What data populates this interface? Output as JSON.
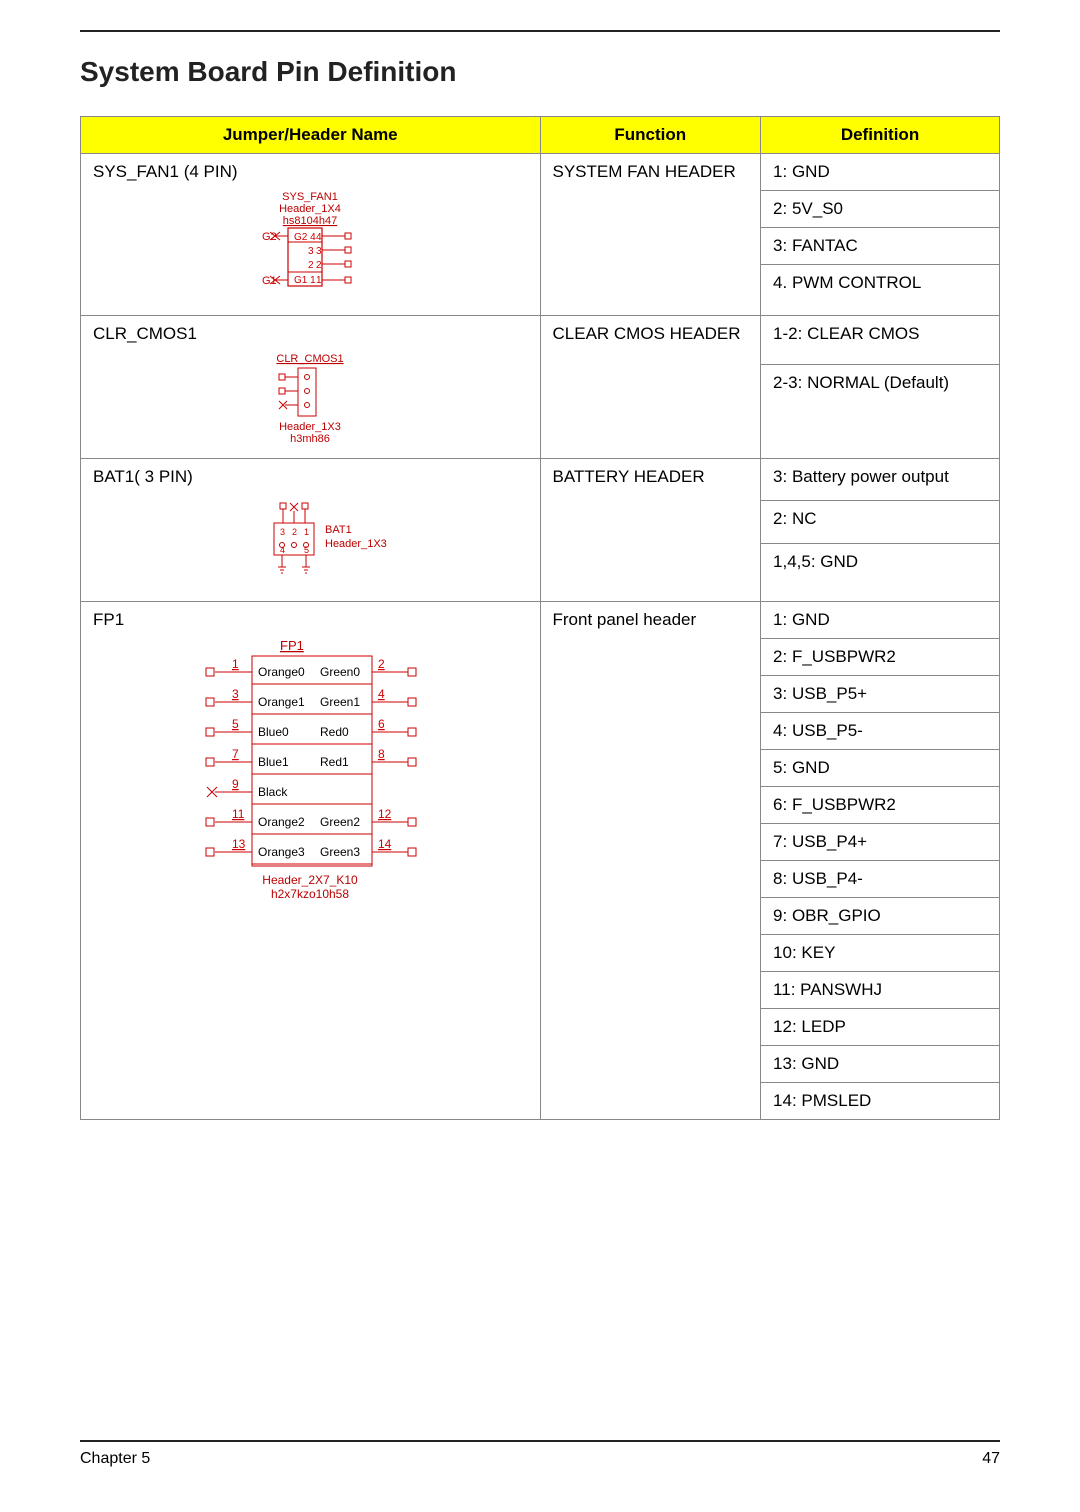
{
  "page": {
    "title": "System Board Pin Definition",
    "chapter_label": "Chapter 5",
    "page_number": "47"
  },
  "columns": {
    "c1": "Jumper/Header Name",
    "c2": "Function",
    "c3": "Definition"
  },
  "rows": {
    "sys_fan": {
      "name": "SYS_FAN1 (4 PIN)",
      "func": "SYSTEM FAN HEADER",
      "defs": [
        "1: GND",
        "2: 5V_S0",
        "3: FANTAC",
        "4. PWM CONTROL"
      ],
      "diag": {
        "title1": "SYS_FAN1",
        "title2": "Header_1X4",
        "title3": "hs8104h47",
        "g2": "G2",
        "g1": "G1",
        "p1": "1",
        "p2": "2",
        "p3": "3",
        "p4": "4",
        "l1": "G1 1",
        "l2": "G2 4"
      }
    },
    "clr_cmos": {
      "name": "CLR_CMOS1",
      "func": "CLEAR CMOS HEADER",
      "defs": [
        "1-2: CLEAR CMOS",
        "2-3: NORMAL (Default)"
      ],
      "diag": {
        "title": "CLR_CMOS1",
        "sub1": "Header_1X3",
        "sub2": "h3mh86"
      }
    },
    "bat1": {
      "name": "BAT1( 3 PIN)",
      "func": "BATTERY HEADER",
      "defs": [
        "3: Battery power output",
        "2: NC",
        "1,4,5: GND"
      ],
      "diag": {
        "title": "BAT1",
        "sub": "Header_1X3"
      }
    },
    "fp1": {
      "name": "FP1",
      "func": "Front panel header",
      "defs": [
        "1: GND",
        "2: F_USBPWR2",
        "3: USB_P5+",
        "4: USB_P5-",
        "5: GND",
        "6: F_USBPWR2",
        "7: USB_P4+",
        "8: USB_P4-",
        "9: OBR_GPIO",
        "10: KEY",
        "11: PANSWHJ",
        "12: LEDP",
        "13: GND",
        "14: PMSLED"
      ],
      "diag": {
        "title": "FP1",
        "rows": [
          {
            "l": "1",
            "r": "2",
            "t1": "Orange0",
            "t2": "Green0"
          },
          {
            "l": "3",
            "r": "4",
            "t1": "Orange1",
            "t2": "Green1"
          },
          {
            "l": "5",
            "r": "6",
            "t1": "Blue0",
            "t2": "Red0"
          },
          {
            "l": "7",
            "r": "8",
            "t1": "Blue1",
            "t2": "Red1"
          },
          {
            "l": "9",
            "r": "",
            "t1": "Black",
            "t2": ""
          },
          {
            "l": "11",
            "r": "12",
            "t1": "Orange2",
            "t2": "Green2"
          },
          {
            "l": "13",
            "r": "14",
            "t1": "Orange3",
            "t2": "Green3"
          }
        ],
        "sub1": "Header_2X7_K10",
        "sub2": "h2x7kzo10h58"
      }
    }
  },
  "style": {
    "header_bg": "#ffff00",
    "border": "#888888",
    "diag_red": "#cc0000",
    "diag_text": "#bb0000",
    "diag_orange": "#dd7700"
  }
}
